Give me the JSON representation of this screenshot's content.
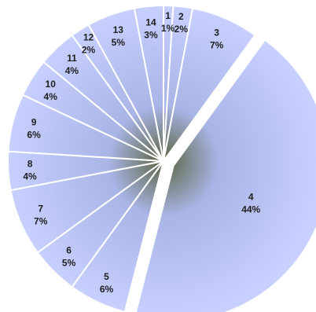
{
  "chart_data": {
    "type": "pie",
    "title": "",
    "legend": "none",
    "start_angle_deg": 0,
    "direction": "clockwise",
    "exploded": [
      "4"
    ],
    "slices": [
      {
        "label": "1",
        "value": 1,
        "percent_label": "1%"
      },
      {
        "label": "2",
        "value": 2,
        "percent_label": "2%"
      },
      {
        "label": "3",
        "value": 7,
        "percent_label": "7%"
      },
      {
        "label": "4",
        "value": 44,
        "percent_label": "44%"
      },
      {
        "label": "5",
        "value": 6,
        "percent_label": "6%"
      },
      {
        "label": "6",
        "value": 5,
        "percent_label": "5%"
      },
      {
        "label": "7",
        "value": 7,
        "percent_label": "7%"
      },
      {
        "label": "8",
        "value": 4,
        "percent_label": "4%"
      },
      {
        "label": "9",
        "value": 6,
        "percent_label": "6%"
      },
      {
        "label": "10",
        "value": 4,
        "percent_label": "4%"
      },
      {
        "label": "11",
        "value": 4,
        "percent_label": "4%"
      },
      {
        "label": "12",
        "value": 2,
        "percent_label": "2%"
      },
      {
        "label": "13",
        "value": 5,
        "percent_label": "5%"
      },
      {
        "label": "14",
        "value": 3,
        "percent_label": "3%"
      }
    ],
    "colors": {
      "fill_light": "#c8d0ff",
      "fill_mid": "#a9b5e6",
      "fill_dark": "#5a6340",
      "separator": "#ffffff"
    }
  }
}
